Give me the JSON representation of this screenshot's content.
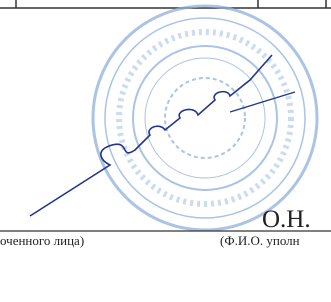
{
  "signature_name": "О.Н.",
  "captions": [
    "оченного лица)",
    "(Ф.И.О. уполн"
  ]
}
